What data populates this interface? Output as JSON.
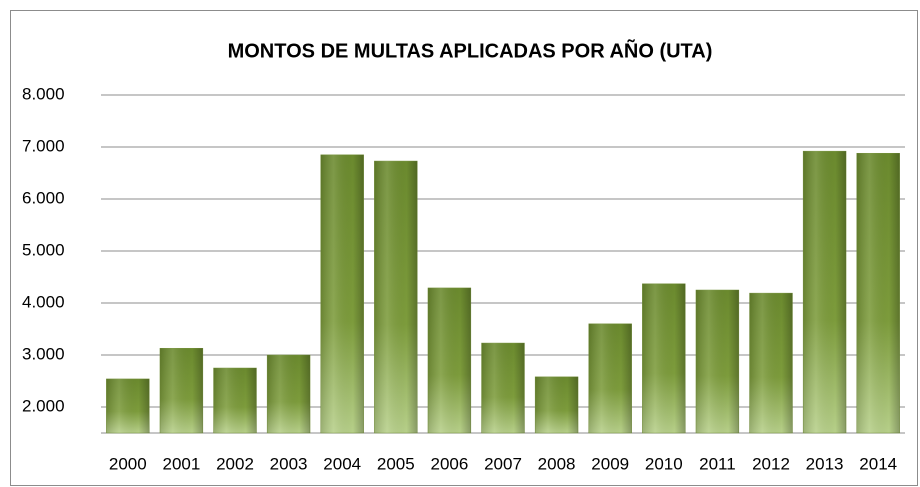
{
  "chart_data": {
    "type": "bar",
    "title": "MONTOS DE MULTAS APLICADAS POR AÑO (UTA)",
    "categories": [
      "2000",
      "2001",
      "2002",
      "2003",
      "2004",
      "2005",
      "2006",
      "2007",
      "2008",
      "2009",
      "2010",
      "2011",
      "2012",
      "2013",
      "2014"
    ],
    "values": [
      2540,
      3130,
      2750,
      3000,
      6850,
      6730,
      4290,
      3230,
      2580,
      3600,
      4370,
      4250,
      4190,
      6920,
      6880
    ],
    "color": "#77933c",
    "ylim": [
      1500,
      8000
    ],
    "yticks": [
      {
        "value": 2000,
        "label": "2.000"
      },
      {
        "value": 3000,
        "label": "3.000"
      },
      {
        "value": 4000,
        "label": "4.000"
      },
      {
        "value": 5000,
        "label": "5.000"
      },
      {
        "value": 6000,
        "label": "6.000"
      },
      {
        "value": 7000,
        "label": "7.000"
      },
      {
        "value": 8000,
        "label": "8.000"
      }
    ],
    "grid": true
  }
}
